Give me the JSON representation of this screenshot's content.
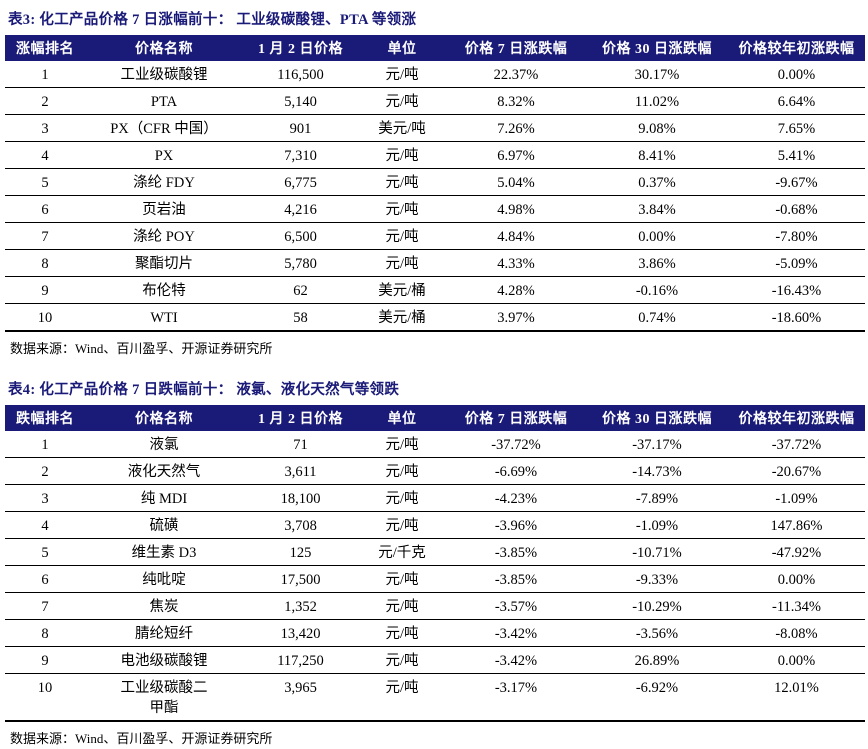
{
  "page": {
    "accent_navy": "#1a1a78",
    "line_color": "#000000",
    "header_text_color": "#ffffff"
  },
  "tables": [
    {
      "title": "表3:  化工产品价格 7 日涨幅前十：  工业级碳酸锂、PTA 等领涨",
      "columns": [
        "涨幅排名",
        "价格名称",
        "1 月 2 日价格",
        "单位",
        "价格 7 日涨跌幅",
        "价格 30 日涨跌幅",
        "价格较年初涨跌幅"
      ],
      "rows": [
        [
          "1",
          "工业级碳酸锂",
          "116,500",
          "元/吨",
          "22.37%",
          "30.17%",
          "0.00%"
        ],
        [
          "2",
          "PTA",
          "5,140",
          "元/吨",
          "8.32%",
          "11.02%",
          "6.64%"
        ],
        [
          "3",
          "PX（CFR 中国）",
          "901",
          "美元/吨",
          "7.26%",
          "9.08%",
          "7.65%"
        ],
        [
          "4",
          "PX",
          "7,310",
          "元/吨",
          "6.97%",
          "8.41%",
          "5.41%"
        ],
        [
          "5",
          "涤纶 FDY",
          "6,775",
          "元/吨",
          "5.04%",
          "0.37%",
          "-9.67%"
        ],
        [
          "6",
          "页岩油",
          "4,216",
          "元/吨",
          "4.98%",
          "3.84%",
          "-0.68%"
        ],
        [
          "7",
          "涤纶 POY",
          "6,500",
          "元/吨",
          "4.84%",
          "0.00%",
          "-7.80%"
        ],
        [
          "8",
          "聚酯切片",
          "5,780",
          "元/吨",
          "4.33%",
          "3.86%",
          "-5.09%"
        ],
        [
          "9",
          "布伦特",
          "62",
          "美元/桶",
          "4.28%",
          "-0.16%",
          "-16.43%"
        ],
        [
          "10",
          "WTI",
          "58",
          "美元/桶",
          "3.97%",
          "0.74%",
          "-18.60%"
        ]
      ],
      "source": "数据来源：Wind、百川盈孚、开源证券研究所"
    },
    {
      "title": "表4:  化工产品价格 7 日跌幅前十：  液氯、液化天然气等领跌",
      "columns": [
        "跌幅排名",
        "价格名称",
        "1 月 2 日价格",
        "单位",
        "价格 7 日涨跌幅",
        "价格 30 日涨跌幅",
        "价格较年初涨跌幅"
      ],
      "rows": [
        [
          "1",
          "液氯",
          "71",
          "元/吨",
          "-37.72%",
          "-37.17%",
          "-37.72%"
        ],
        [
          "2",
          "液化天然气",
          "3,611",
          "元/吨",
          "-6.69%",
          "-14.73%",
          "-20.67%"
        ],
        [
          "3",
          "纯 MDI",
          "18,100",
          "元/吨",
          "-4.23%",
          "-7.89%",
          "-1.09%"
        ],
        [
          "4",
          "硫磺",
          "3,708",
          "元/吨",
          "-3.96%",
          "-1.09%",
          "147.86%"
        ],
        [
          "5",
          "维生素 D3",
          "125",
          "元/千克",
          "-3.85%",
          "-10.71%",
          "-47.92%"
        ],
        [
          "6",
          "纯吡啶",
          "17,500",
          "元/吨",
          "-3.85%",
          "-9.33%",
          "0.00%"
        ],
        [
          "7",
          "焦炭",
          "1,352",
          "元/吨",
          "-3.57%",
          "-10.29%",
          "-11.34%"
        ],
        [
          "8",
          "腈纶短纤",
          "13,420",
          "元/吨",
          "-3.42%",
          "-3.56%",
          "-8.08%"
        ],
        [
          "9",
          "电池级碳酸锂",
          "117,250",
          "元/吨",
          "-3.42%",
          "26.89%",
          "0.00%"
        ],
        [
          "10",
          "工业级碳酸二\n甲酯",
          "3,965",
          "元/吨",
          "-3.17%",
          "-6.92%",
          "12.01%"
        ]
      ],
      "source": "数据来源：Wind、百川盈孚、开源证券研究所"
    }
  ]
}
